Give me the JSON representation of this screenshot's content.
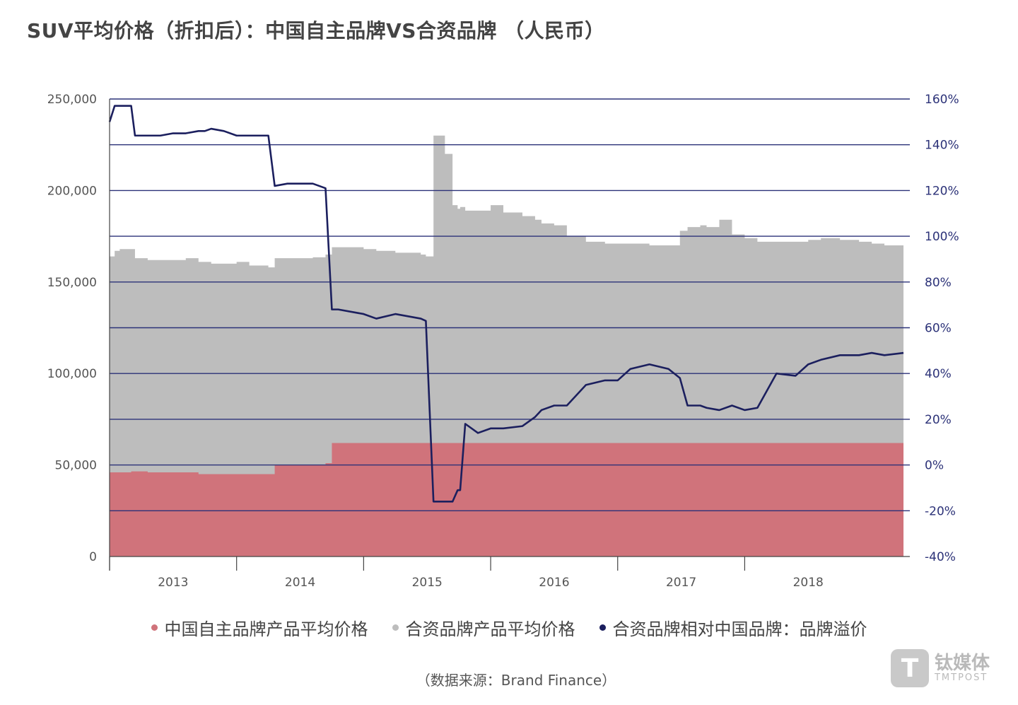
{
  "title": "SUV平均价格（折扣后）：中国自主品牌VS合资品牌 （人民币）",
  "source": "（数据来源：Brand Finance）",
  "watermark": {
    "cn": "钛媒体",
    "en": "TMTPOST",
    "logo_letter": "T"
  },
  "colors": {
    "domestic": "#d0737b",
    "jv": "#bdbdbd",
    "premium": "#1b1f5e",
    "grid": "#2c3278"
  },
  "chart_data": {
    "type": "area",
    "title": "SUV平均价格（折扣后）：中国自主品牌VS合资品牌 （人民币）",
    "x_axis": {
      "label": "",
      "tick_labels": [
        "2013",
        "2014",
        "2015",
        "2016",
        "2017",
        "2018"
      ],
      "range": [
        2012.5,
        2018.8
      ]
    },
    "y_axis_left": {
      "label": "",
      "range": [
        0,
        250000
      ],
      "tick_labels": [
        "0",
        "50,000",
        "100,000",
        "150,000",
        "200,000",
        "250,000"
      ]
    },
    "y_axis_right": {
      "label": "",
      "range": [
        -0.4,
        1.6
      ],
      "tick_labels": [
        "-40%",
        "-20%",
        "0%",
        "20%",
        "40%",
        "60%",
        "80%",
        "100%",
        "120%",
        "140%",
        "160%"
      ]
    },
    "grid": true,
    "legend_position": "bottom",
    "x": [
      2012.5,
      2012.54,
      2012.58,
      2012.67,
      2012.7,
      2012.8,
      2012.9,
      2013.0,
      2013.1,
      2013.2,
      2013.25,
      2013.3,
      2013.4,
      2013.5,
      2013.6,
      2013.75,
      2013.8,
      2013.9,
      2014.0,
      2014.1,
      2014.2,
      2014.25,
      2014.3,
      2014.5,
      2014.6,
      2014.75,
      2014.95,
      2014.99,
      2015.05,
      2015.14,
      2015.2,
      2015.24,
      2015.26,
      2015.3,
      2015.4,
      2015.5,
      2015.6,
      2015.75,
      2015.85,
      2015.9,
      2016.0,
      2016.1,
      2016.25,
      2016.4,
      2016.5,
      2016.6,
      2016.75,
      2016.9,
      2016.99,
      2017.05,
      2017.15,
      2017.2,
      2017.3,
      2017.4,
      2017.5,
      2017.6,
      2017.75,
      2017.9,
      2018.0,
      2018.1,
      2018.25,
      2018.4,
      2018.5,
      2018.6,
      2018.75
    ],
    "series": [
      {
        "name": "中国自主品牌产品平均价格",
        "type": "area",
        "values": [
          46000,
          46000,
          46000,
          46500,
          46500,
          46000,
          46000,
          46000,
          46000,
          45000,
          45000,
          45000,
          45000,
          45000,
          45000,
          45000,
          50000,
          50000,
          50000,
          50000,
          51000,
          62000,
          62000,
          62000,
          62000,
          62000,
          62000,
          62000,
          62000,
          62000,
          62000,
          62000,
          62000,
          62000,
          62000,
          62000,
          62000,
          62000,
          62000,
          62000,
          62000,
          62000,
          62000,
          62000,
          62000,
          62000,
          62000,
          62000,
          62000,
          62000,
          62000,
          62000,
          62000,
          62000,
          62000,
          62000,
          62000,
          62000,
          62000,
          62000,
          62000,
          62000,
          62000,
          62000,
          67000
        ]
      },
      {
        "name": "合资品牌产品平均价格",
        "type": "area",
        "values": [
          164000,
          167000,
          168000,
          168000,
          163000,
          162000,
          162000,
          162000,
          163000,
          161000,
          161000,
          160000,
          160000,
          161000,
          159000,
          158000,
          163000,
          163000,
          163000,
          163500,
          165000,
          169000,
          169000,
          168000,
          167000,
          166000,
          165000,
          164000,
          230000,
          220000,
          192000,
          190000,
          191000,
          189000,
          189000,
          192000,
          188000,
          186000,
          184000,
          182000,
          181000,
          175000,
          172000,
          171000,
          171000,
          171000,
          170000,
          170000,
          178000,
          180000,
          181000,
          180000,
          184000,
          176000,
          174000,
          172000,
          172000,
          172000,
          173000,
          174000,
          173000,
          172000,
          171000,
          170000,
          168000
        ]
      },
      {
        "name": "合资品牌相对中国品牌：品牌溢价",
        "type": "line",
        "axis": "right",
        "values": [
          1.5,
          1.57,
          1.57,
          1.57,
          1.44,
          1.44,
          1.44,
          1.45,
          1.45,
          1.46,
          1.46,
          1.47,
          1.46,
          1.44,
          1.44,
          1.44,
          1.22,
          1.23,
          1.23,
          1.23,
          1.21,
          0.68,
          0.68,
          0.66,
          0.64,
          0.66,
          0.64,
          0.63,
          -0.16,
          -0.16,
          -0.16,
          -0.11,
          -0.11,
          0.18,
          0.14,
          0.16,
          0.16,
          0.17,
          0.21,
          0.24,
          0.26,
          0.26,
          0.35,
          0.37,
          0.37,
          0.42,
          0.44,
          0.42,
          0.38,
          0.26,
          0.26,
          0.25,
          0.24,
          0.26,
          0.24,
          0.25,
          0.4,
          0.39,
          0.44,
          0.46,
          0.48,
          0.48,
          0.49,
          0.48,
          0.49
        ]
      }
    ]
  }
}
